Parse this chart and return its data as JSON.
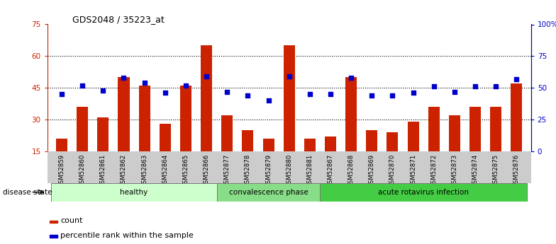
{
  "title": "GDS2048 / 35223_at",
  "samples": [
    "GSM52859",
    "GSM52860",
    "GSM52861",
    "GSM52862",
    "GSM52863",
    "GSM52864",
    "GSM52865",
    "GSM52866",
    "GSM52877",
    "GSM52878",
    "GSM52879",
    "GSM52880",
    "GSM52881",
    "GSM52867",
    "GSM52868",
    "GSM52869",
    "GSM52870",
    "GSM52871",
    "GSM52872",
    "GSM52873",
    "GSM52874",
    "GSM52875",
    "GSM52876"
  ],
  "counts": [
    21,
    36,
    31,
    50,
    46,
    28,
    46,
    65,
    32,
    25,
    21,
    65,
    21,
    22,
    50,
    25,
    24,
    29,
    36,
    32,
    36,
    36,
    47
  ],
  "percentiles": [
    45,
    52,
    48,
    58,
    54,
    46,
    52,
    59,
    47,
    44,
    40,
    59,
    45,
    45,
    58,
    44,
    44,
    46,
    51,
    47,
    51,
    51,
    57
  ],
  "groups": [
    {
      "label": "healthy",
      "start": 0,
      "end": 7,
      "color": "#ccffcc"
    },
    {
      "label": "convalescence phase",
      "start": 8,
      "end": 12,
      "color": "#88dd88"
    },
    {
      "label": "acute rotavirus infection",
      "start": 13,
      "end": 22,
      "color": "#44cc44"
    }
  ],
  "ylim_left": [
    15,
    75
  ],
  "ylim_right": [
    0,
    100
  ],
  "yticks_left": [
    15,
    30,
    45,
    60,
    75
  ],
  "yticks_right": [
    0,
    25,
    50,
    75,
    100
  ],
  "ytick_labels_right": [
    "0",
    "25",
    "50",
    "75",
    "100%"
  ],
  "bar_color": "#cc2200",
  "dot_color": "#0000cc",
  "background_color": "#ffffff",
  "bar_bottom": 15,
  "tick_bg_color": "#cccccc",
  "disease_state_label": "disease state",
  "legend_count": "count",
  "legend_percentile": "percentile rank within the sample"
}
